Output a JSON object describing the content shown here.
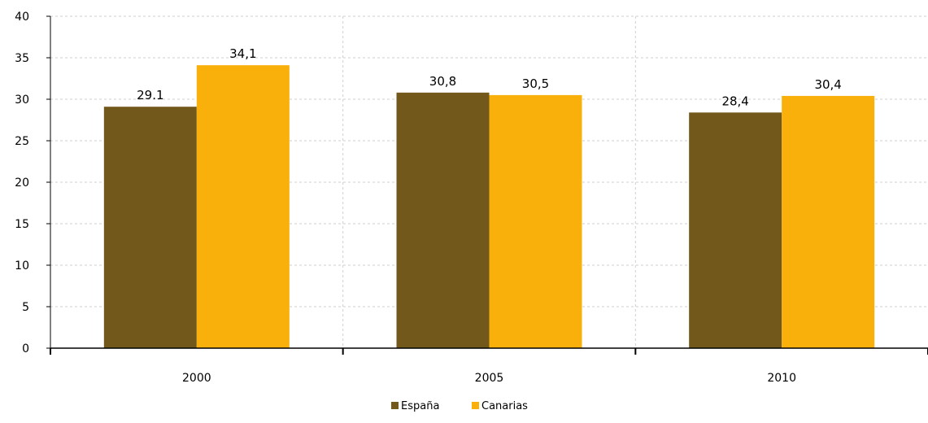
{
  "chart_data": {
    "type": "bar",
    "categories": [
      "2000",
      "2005",
      "2010"
    ],
    "series": [
      {
        "name": "España",
        "values": [
          29.1,
          30.8,
          28.4
        ],
        "labels": [
          "29.1",
          "30,8",
          "28,4"
        ],
        "color": "#73581c"
      },
      {
        "name": "Canarias",
        "values": [
          34.1,
          30.5,
          30.4
        ],
        "labels": [
          "34,1",
          "30,5",
          "30,4"
        ],
        "color": "#f9b00a"
      }
    ],
    "yticks": [
      "0",
      "5",
      "10",
      "15",
      "20",
      "25",
      "30",
      "35",
      "40"
    ],
    "ylim": [
      0,
      40
    ],
    "grid": true,
    "legend_position": "bottom",
    "title": "",
    "xlabel": "",
    "ylabel": ""
  }
}
